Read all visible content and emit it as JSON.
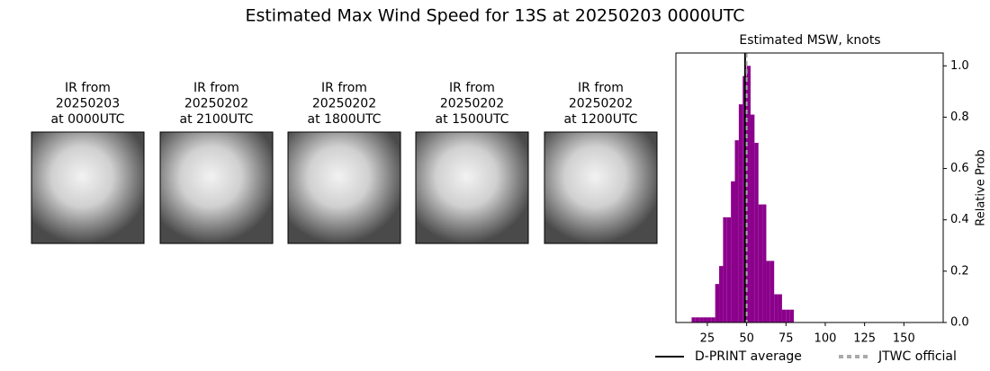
{
  "title": "Estimated Max Wind Speed for 13S at 20250203 0000UTC",
  "panels": [
    {
      "lines": [
        "IR from",
        "20250203",
        "at 0000UTC"
      ]
    },
    {
      "lines": [
        "IR from",
        "20250202",
        "at 2100UTC"
      ]
    },
    {
      "lines": [
        "IR from",
        "20250202",
        "at 1800UTC"
      ]
    },
    {
      "lines": [
        "IR from",
        "20250202",
        "at 1500UTC"
      ]
    },
    {
      "lines": [
        "IR from",
        "20250202",
        "at 1200UTC"
      ]
    }
  ],
  "chart_data": {
    "type": "histogram",
    "title": "Estimated MSW, knots",
    "y_label": "Relative Prob",
    "color": "#8b008b",
    "bins": [
      15,
      17.5,
      20,
      22.5,
      25,
      27.5,
      30,
      32.5,
      35,
      37.5,
      40,
      42.5,
      45,
      47.5,
      50,
      52.5,
      55,
      57.5,
      60,
      62.5,
      65,
      67.5,
      70,
      72.5,
      75,
      77.5,
      80
    ],
    "values": [
      0.02,
      0.02,
      0.02,
      0.02,
      0.02,
      0.02,
      0.15,
      0.22,
      0.41,
      0.41,
      0.55,
      0.71,
      0.85,
      0.96,
      1.0,
      0.81,
      0.7,
      0.46,
      0.46,
      0.24,
      0.24,
      0.11,
      0.11,
      0.05,
      0.05,
      0.05
    ],
    "xlim": [
      5,
      175
    ],
    "xticks": [
      25,
      50,
      75,
      100,
      125,
      150
    ],
    "ylim": [
      0,
      1.05
    ],
    "yticks": [
      {
        "value": 0,
        "label": "0.0"
      },
      {
        "value": 0.2,
        "label": "0.2"
      },
      {
        "value": 0.4,
        "label": "0.4"
      },
      {
        "value": 0.6,
        "label": "0.6"
      },
      {
        "value": 0.8,
        "label": "0.8"
      },
      {
        "value": 1.0,
        "label": "1.0"
      }
    ],
    "lines": [
      {
        "name": "D-PRINT average",
        "x": 49,
        "color": "#000000",
        "style": "solid"
      },
      {
        "name": "JTWC official",
        "x": 50,
        "color": "#aaaaaa",
        "style": "dashed"
      }
    ]
  }
}
